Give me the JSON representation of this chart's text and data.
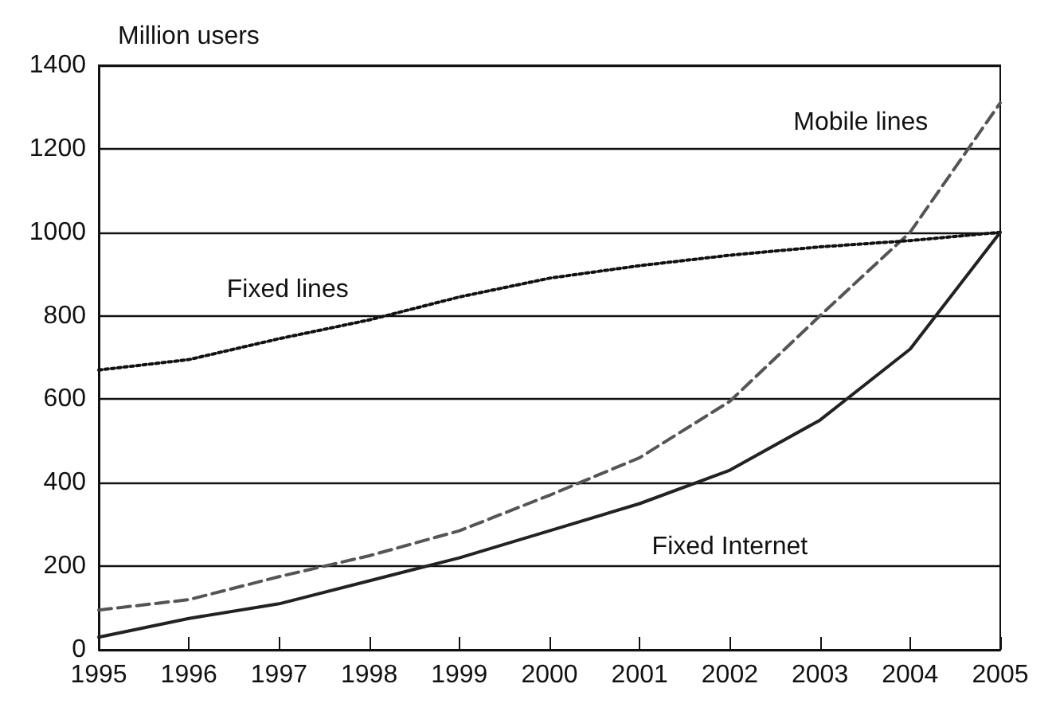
{
  "chart_data": {
    "type": "line",
    "ylabel": "Million users",
    "x": [
      1995,
      1996,
      1997,
      1998,
      1999,
      2000,
      2001,
      2002,
      2003,
      2004,
      2005
    ],
    "xlim": [
      1995,
      2005
    ],
    "xticks": [
      1995,
      1996,
      1997,
      1998,
      1999,
      2000,
      2001,
      2002,
      2003,
      2004,
      2005
    ],
    "ylim": [
      0,
      1400
    ],
    "yticks": [
      0,
      200,
      400,
      600,
      800,
      1000,
      1200,
      1400
    ],
    "grid": "y",
    "legend": false,
    "marker": "none",
    "series": [
      {
        "name": "Mobile lines",
        "color": "#555555",
        "line_style": "dashed",
        "values": [
          95,
          120,
          175,
          225,
          285,
          370,
          460,
          595,
          800,
          1000,
          1310
        ]
      },
      {
        "name": "Fixed lines",
        "color": "#111111",
        "line_style": "dotted",
        "values": [
          670,
          695,
          745,
          790,
          845,
          890,
          920,
          945,
          965,
          980,
          1000
        ]
      },
      {
        "name": "Fixed Internet",
        "color": "#222222",
        "line_style": "solid",
        "values": [
          30,
          75,
          110,
          165,
          220,
          285,
          350,
          430,
          550,
          720,
          1000
        ]
      }
    ]
  }
}
